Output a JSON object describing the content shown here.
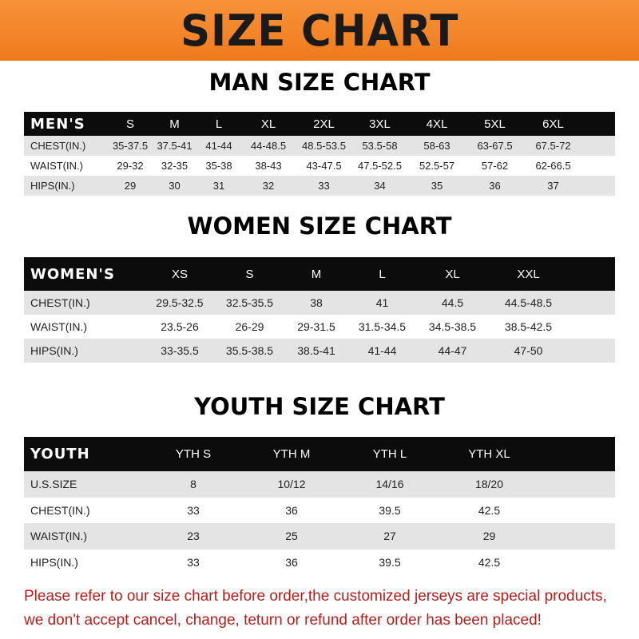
{
  "banner_title": "SIZE CHART",
  "men": {
    "title": "MAN SIZE CHART",
    "header": [
      "MEN'S",
      "S",
      "M",
      "L",
      "XL",
      "2XL",
      "3XL",
      "4XL",
      "5XL",
      "6XL"
    ],
    "rows": [
      [
        "CHEST(IN.)",
        "35-37.5",
        "37.5-41",
        "41-44",
        "44-48.5",
        "48.5-53.5",
        "53.5-58",
        "58-63",
        "63-67.5",
        "67.5-72"
      ],
      [
        "WAIST(IN.)",
        "29-32",
        "32-35",
        "35-38",
        "38-43",
        "43-47.5",
        "47.5-52.5",
        "52.5-57",
        "57-62",
        "62-66.5"
      ],
      [
        "HIPS(IN.)",
        "29",
        "30",
        "31",
        "32",
        "33",
        "34",
        "35",
        "36",
        "37"
      ]
    ]
  },
  "women": {
    "title": "WOMEN SIZE CHART",
    "header": [
      "WOMEN'S",
      "XS",
      "S",
      "M",
      "L",
      "XL",
      "XXL"
    ],
    "rows": [
      [
        "CHEST(IN.)",
        "29.5-32.5",
        "32.5-35.5",
        "38",
        "41",
        "44.5",
        "44.5-48.5"
      ],
      [
        "WAIST(IN.)",
        "23.5-26",
        "26-29",
        "29-31.5",
        "31.5-34.5",
        "34.5-38.5",
        "38.5-42.5"
      ],
      [
        "HIPS(IN.)",
        "33-35.5",
        "35.5-38.5",
        "38.5-41",
        "41-44",
        "44-47",
        "47-50"
      ]
    ]
  },
  "youth": {
    "title": "YOUTH SIZE CHART",
    "header": [
      "YOUTH",
      "YTH S",
      "YTH M",
      "YTH L",
      "YTH XL"
    ],
    "rows": [
      [
        "U.S.SIZE",
        "8",
        "10/12",
        "14/16",
        "18/20"
      ],
      [
        "CHEST(IN.)",
        "33",
        "36",
        "39.5",
        "42.5"
      ],
      [
        "WAIST(IN.)",
        "23",
        "25",
        "27",
        "29"
      ],
      [
        "HIPS(IN.)",
        "33",
        "36",
        "39.5",
        "42.5"
      ]
    ]
  },
  "notice": {
    "line1": "Please refer to our size chart before order,the customized jerseys are special products,",
    "line2": "we don't accept cancel, change, teturn or refund after order has been placed!"
  },
  "colors": {
    "banner": "#f28228",
    "header_row": "#0c0c0c",
    "notice": "#b3201c"
  }
}
